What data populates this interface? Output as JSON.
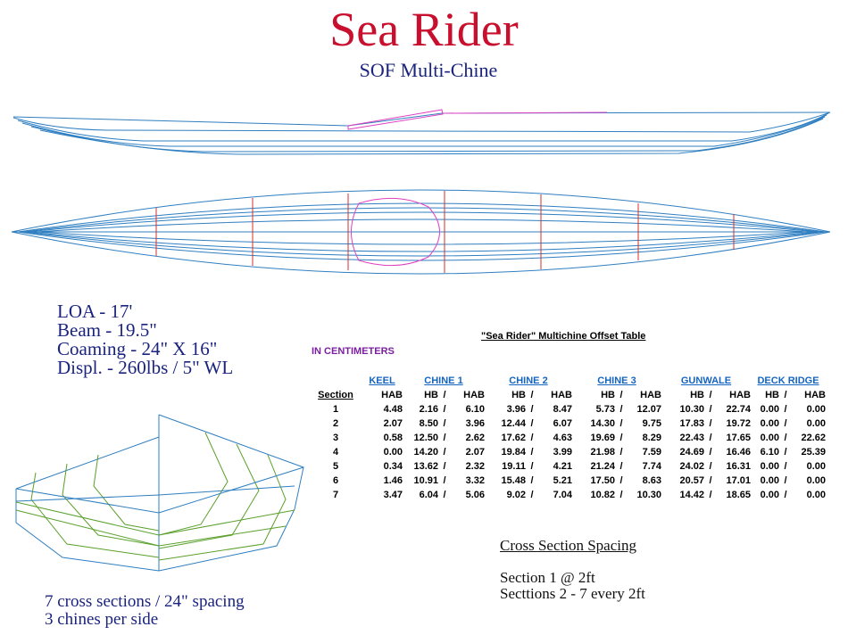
{
  "title": "Sea Rider",
  "subtitle": "SOF Multi-Chine",
  "specs": [
    "LOA - 17'",
    "Beam - 19.5\"",
    "Coaming - 24\" X 16\"",
    "Displ. - 260lbs / 5\" WL"
  ],
  "caption": {
    "line1": "7 cross sections / 24\" spacing",
    "line2": "3 chines per side"
  },
  "spacing": {
    "heading": "Cross Section Spacing",
    "line1": "Section 1 @ 2ft",
    "line2": "Secttions 2 - 7 every 2ft"
  },
  "table": {
    "title": "\"Sea Rider\" Multichine Offset Table",
    "units": "IN CENTIMETERS",
    "groups": {
      "keel": "KEEL",
      "chine1": "CHINE 1",
      "chine2": "CHINE 2",
      "chine3": "CHINE 3",
      "gunwale": "GUNWALE",
      "deck_ridge": "DECK RIDGE"
    },
    "sub": {
      "section": "Section",
      "hab": "HAB",
      "hb": "HB",
      "sep": "/"
    },
    "rows": [
      [
        "1",
        "4.48",
        "2.16",
        "6.10",
        "3.96",
        "8.47",
        "5.73",
        "12.07",
        "10.30",
        "22.74",
        "0.00",
        "0.00"
      ],
      [
        "2",
        "2.07",
        "8.50",
        "3.96",
        "12.44",
        "6.07",
        "14.30",
        "9.75",
        "17.83",
        "19.72",
        "0.00",
        "0.00"
      ],
      [
        "3",
        "0.58",
        "12.50",
        "2.62",
        "17.62",
        "4.63",
        "19.69",
        "8.29",
        "22.43",
        "17.65",
        "0.00",
        "22.62"
      ],
      [
        "4",
        "0.00",
        "14.20",
        "2.07",
        "19.84",
        "3.99",
        "21.98",
        "7.59",
        "24.69",
        "16.46",
        "6.10",
        "25.39"
      ],
      [
        "5",
        "0.34",
        "13.62",
        "2.32",
        "19.11",
        "4.21",
        "21.24",
        "7.74",
        "24.02",
        "16.31",
        "0.00",
        "0.00"
      ],
      [
        "6",
        "1.46",
        "10.91",
        "3.32",
        "15.48",
        "5.21",
        "17.50",
        "8.63",
        "20.57",
        "17.01",
        "0.00",
        "0.00"
      ],
      [
        "7",
        "3.47",
        "6.04",
        "5.06",
        "9.02",
        "7.04",
        "10.82",
        "10.30",
        "14.42",
        "18.65",
        "0.00",
        "0.00"
      ]
    ]
  },
  "colors": {
    "title": "#c8102e",
    "text_blue": "#1a237e",
    "line_blue": "#2f7fc1",
    "magenta": "#e040c0",
    "section_red": "#d32f2f",
    "body_green": "#5aa02c"
  }
}
